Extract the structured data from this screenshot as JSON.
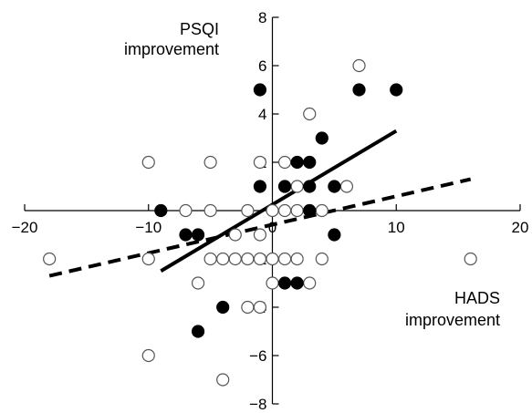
{
  "chart_data": {
    "type": "scatter",
    "x_axis_label": [
      "HADS",
      "improvement"
    ],
    "y_axis_label": [
      "PSQI",
      "improvement"
    ],
    "xlim": [
      -20,
      20
    ],
    "ylim": [
      -8,
      8
    ],
    "x_ticks": [
      -20,
      -10,
      0,
      10,
      20
    ],
    "y_ticks": [
      -8,
      -6,
      -4,
      -2,
      0,
      2,
      4,
      6,
      8
    ],
    "x_tick_labels": [
      "−20",
      "−10",
      "0",
      "10",
      "20"
    ],
    "y_tick_labels": [
      "−8",
      "−6",
      "−4",
      "−2",
      "0",
      "2",
      "4",
      "6",
      "8"
    ],
    "series": [
      {
        "marker": "open",
        "points": [
          [
            -18,
            -2
          ],
          [
            -10,
            2
          ],
          [
            -10,
            -2
          ],
          [
            -10,
            -6
          ],
          [
            -7,
            0
          ],
          [
            -6,
            -3
          ],
          [
            -5,
            0
          ],
          [
            -5,
            2
          ],
          [
            -5,
            -2
          ],
          [
            -4,
            -2
          ],
          [
            -3,
            -1
          ],
          [
            -3,
            -2
          ],
          [
            -2,
            -4
          ],
          [
            -2,
            -2
          ],
          [
            -2,
            0
          ],
          [
            -4,
            -7
          ],
          [
            -1,
            -4
          ],
          [
            -1,
            2
          ],
          [
            -1,
            -2
          ],
          [
            -1,
            -1
          ],
          [
            0,
            0
          ],
          [
            0,
            -2
          ],
          [
            0,
            -3
          ],
          [
            1,
            2
          ],
          [
            1,
            1
          ],
          [
            1,
            0
          ],
          [
            1,
            -2
          ],
          [
            2,
            1
          ],
          [
            2,
            0
          ],
          [
            2,
            -2
          ],
          [
            3,
            4
          ],
          [
            3,
            0
          ],
          [
            3,
            -3
          ],
          [
            4,
            0
          ],
          [
            4,
            -2
          ],
          [
            6,
            1
          ],
          [
            7,
            6
          ],
          [
            16,
            -2
          ]
        ]
      },
      {
        "marker": "filled",
        "points": [
          [
            -9,
            0
          ],
          [
            -7,
            -1
          ],
          [
            -6,
            -1
          ],
          [
            -4,
            -4
          ],
          [
            -6,
            -5
          ],
          [
            -1,
            1
          ],
          [
            1,
            1
          ],
          [
            1,
            -3
          ],
          [
            2,
            2
          ],
          [
            2,
            -3
          ],
          [
            3,
            2
          ],
          [
            3,
            1
          ],
          [
            3,
            0
          ],
          [
            4,
            3
          ],
          [
            5,
            1
          ],
          [
            5,
            -1
          ],
          [
            7,
            5
          ],
          [
            10,
            5
          ],
          [
            -1,
            5
          ]
        ]
      }
    ],
    "fit_lines": [
      {
        "style": "solid",
        "points": [
          [
            -9,
            -2.5
          ],
          [
            10,
            3.3
          ]
        ]
      },
      {
        "style": "dashed",
        "points": [
          [
            -18,
            -2.7
          ],
          [
            16,
            1.3
          ]
        ]
      }
    ],
    "grid": false,
    "legend": "none"
  }
}
